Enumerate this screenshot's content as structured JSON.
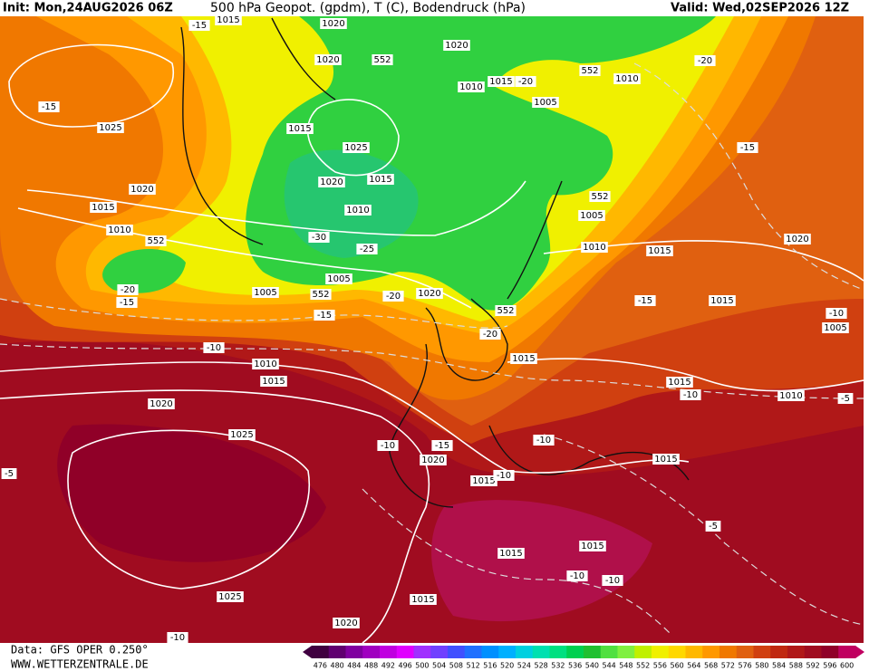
{
  "header": {
    "init": "Init: Mon,24AUG2026 06Z",
    "product": "500 hPa Geopot. (gpdm), T (C), Bodendruck (hPa)",
    "valid": "Valid: Wed,02SEP2026 12Z"
  },
  "footer": {
    "data_source": "Data: GFS OPER 0.250°",
    "website": "WWW.WETTERZENTRALE.DE"
  },
  "colorbar": {
    "labels": [
      476,
      480,
      484,
      488,
      492,
      496,
      500,
      504,
      508,
      512,
      516,
      520,
      524,
      528,
      532,
      536,
      540,
      544,
      548,
      552,
      556,
      560,
      564,
      568,
      572,
      576,
      580,
      584,
      588,
      592,
      596,
      600
    ],
    "colors": [
      "#400040",
      "#600070",
      "#8000a0",
      "#a000c0",
      "#c000e0",
      "#e000ff",
      "#a030ff",
      "#7040ff",
      "#4050ff",
      "#2070ff",
      "#0090ff",
      "#00b0ff",
      "#00d0e0",
      "#00e0b0",
      "#00e080",
      "#00d050",
      "#20c030",
      "#50e040",
      "#80f040",
      "#c0f000",
      "#f0f000",
      "#ffd800",
      "#ffb800",
      "#ff9800",
      "#f07800",
      "#e06010",
      "#d04010",
      "#c02810",
      "#b01818",
      "#a00c20",
      "#900028",
      "#c00060"
    ]
  },
  "map_labels": [
    "1015",
    "-15",
    "1020",
    "1020",
    "1020",
    "552",
    "-20",
    "552",
    "1010",
    "1010",
    "1015",
    "-20",
    "1005",
    "-15",
    "1025",
    "1015",
    "1025",
    "-15",
    "1020",
    "1015",
    "1020",
    "552",
    "1015",
    "1010",
    "1005",
    "1010",
    "552",
    "-30",
    "-25",
    "1010",
    "1015",
    "1020",
    "1005",
    "-20",
    "-15",
    "1005",
    "552",
    "-20",
    "1020",
    "552",
    "-15",
    "1015",
    "-15",
    "-10",
    "1005",
    "-20",
    "-10",
    "1010",
    "1015",
    "1015",
    "1015",
    "-10",
    "1010",
    "-5",
    "1020",
    "1025",
    "-10",
    "-15",
    "-10",
    "1020",
    "1015",
    "-5",
    "1015",
    "-10",
    "-5",
    "1015",
    "1015",
    "-10",
    "-10",
    "1025",
    "1015",
    "1020",
    "-10"
  ]
}
